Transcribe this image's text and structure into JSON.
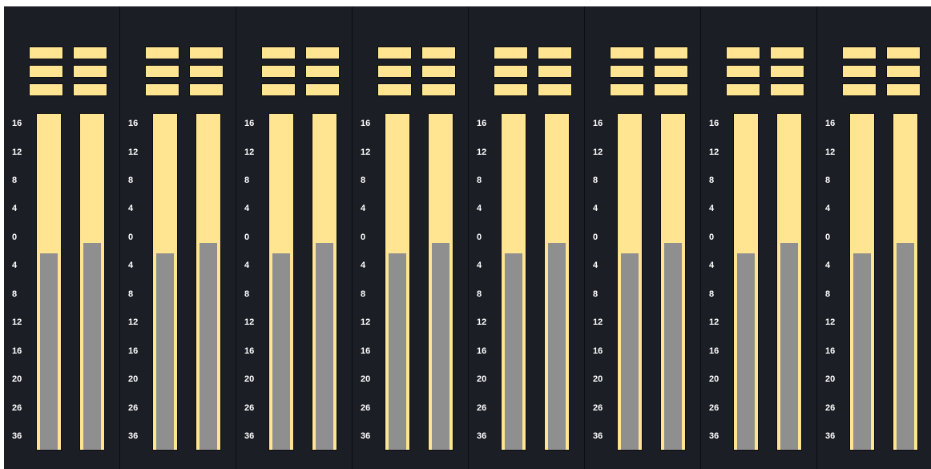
{
  "scale": [
    "16",
    "12",
    "8",
    "4",
    "0",
    "4",
    "8",
    "12",
    "16",
    "20",
    "26",
    "36"
  ],
  "channels": [
    {
      "buttons": [
        "",
        "",
        "",
        "",
        "",
        ""
      ],
      "meters": [
        {
          "level": 0.584
        },
        {
          "level": 0.615
        }
      ]
    },
    {
      "buttons": [
        "",
        "",
        "",
        "",
        "",
        ""
      ],
      "meters": [
        {
          "level": 0.584
        },
        {
          "level": 0.615
        }
      ]
    },
    {
      "buttons": [
        "",
        "",
        "",
        "",
        "",
        ""
      ],
      "meters": [
        {
          "level": 0.584
        },
        {
          "level": 0.615
        }
      ]
    },
    {
      "buttons": [
        "",
        "",
        "",
        "",
        "",
        ""
      ],
      "meters": [
        {
          "level": 0.584
        },
        {
          "level": 0.615
        }
      ]
    },
    {
      "buttons": [
        "",
        "",
        "",
        "",
        "",
        ""
      ],
      "meters": [
        {
          "level": 0.584
        },
        {
          "level": 0.615
        }
      ]
    },
    {
      "buttons": [
        "",
        "",
        "",
        "",
        "",
        ""
      ],
      "meters": [
        {
          "level": 0.584
        },
        {
          "level": 0.615
        }
      ]
    },
    {
      "buttons": [
        "",
        "",
        "",
        "",
        "",
        ""
      ],
      "meters": [
        {
          "level": 0.584
        },
        {
          "level": 0.615
        }
      ]
    },
    {
      "buttons": [
        "",
        "",
        "",
        "",
        "",
        ""
      ],
      "meters": [
        {
          "level": 0.584
        },
        {
          "level": 0.615
        }
      ]
    }
  ],
  "colors": {
    "panel": "#1b1e25",
    "divider": "#0b0d11",
    "button": "#ffe592",
    "meter_background": "#ffe592",
    "meter_level": "#8f8f8f",
    "scale_text": "#ffffff"
  }
}
